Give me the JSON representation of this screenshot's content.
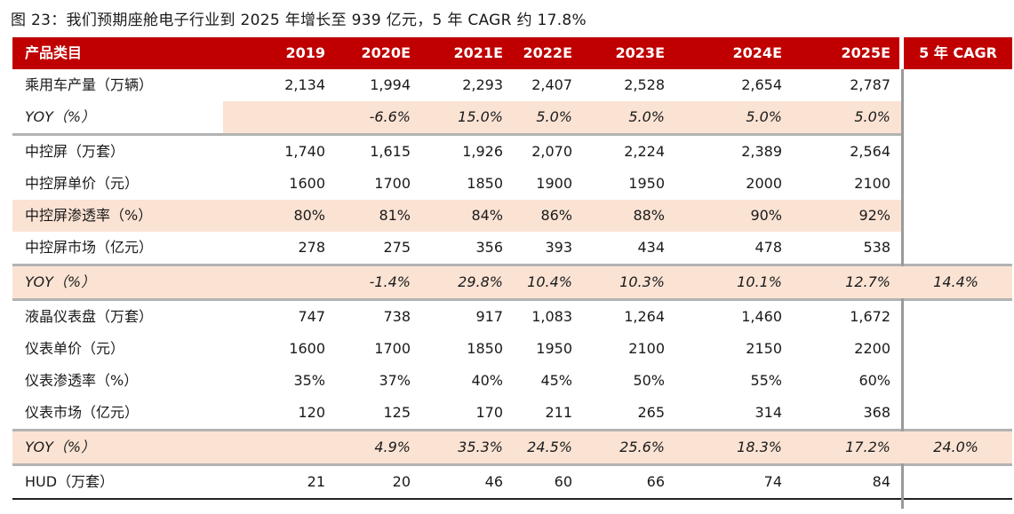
{
  "title": "图 23：我们预期座舱电子行业到 2025 年增长至 939 亿元，5 年 CAGR 约 17.8%",
  "header": {
    "label": "产品类目",
    "years": [
      "2019",
      "2020E",
      "2021E",
      "2022E",
      "2023E",
      "2024E",
      "2025E"
    ],
    "cagr": "5 年 CAGR"
  },
  "rows": [
    {
      "label": "乘用车产量（万辆）",
      "values": [
        "2,134",
        "1,994",
        "2,293",
        "2,407",
        "2,528",
        "2,654",
        "2,787"
      ],
      "cagr": ""
    },
    {
      "label": "YOY（%）",
      "values": [
        "",
        "-6.6%",
        "15.0%",
        "5.0%",
        "5.0%",
        "5.0%",
        "5.0%"
      ],
      "cagr": ""
    },
    {
      "label": "中控屏（万套）",
      "values": [
        "1,740",
        "1,615",
        "1,926",
        "2,070",
        "2,224",
        "2,389",
        "2,564"
      ],
      "cagr": ""
    },
    {
      "label": "中控屏单价（元）",
      "values": [
        "1600",
        "1700",
        "1850",
        "1900",
        "1950",
        "2000",
        "2100"
      ],
      "cagr": ""
    },
    {
      "label": "中控屏渗透率（%）",
      "values": [
        "80%",
        "81%",
        "84%",
        "86%",
        "88%",
        "90%",
        "92%"
      ],
      "cagr": ""
    },
    {
      "label": "中控屏市场（亿元）",
      "values": [
        "278",
        "275",
        "356",
        "393",
        "434",
        "478",
        "538"
      ],
      "cagr": ""
    },
    {
      "label": "YOY（%）",
      "values": [
        "",
        "-1.4%",
        "29.8%",
        "10.4%",
        "10.3%",
        "10.1%",
        "12.7%"
      ],
      "cagr": "14.4%"
    },
    {
      "label": "液晶仪表盘（万套）",
      "values": [
        "747",
        "738",
        "917",
        "1,083",
        "1,264",
        "1,460",
        "1,672"
      ],
      "cagr": ""
    },
    {
      "label": "仪表单价（元）",
      "values": [
        "1600",
        "1700",
        "1850",
        "1950",
        "2100",
        "2150",
        "2200"
      ],
      "cagr": ""
    },
    {
      "label": "仪表渗透率（%）",
      "values": [
        "35%",
        "37%",
        "40%",
        "45%",
        "50%",
        "55%",
        "60%"
      ],
      "cagr": ""
    },
    {
      "label": "仪表市场（亿元）",
      "values": [
        "120",
        "125",
        "170",
        "211",
        "265",
        "314",
        "368"
      ],
      "cagr": ""
    },
    {
      "label": "YOY（%）",
      "values": [
        "",
        "4.9%",
        "35.3%",
        "24.5%",
        "25.6%",
        "18.3%",
        "17.2%"
      ],
      "cagr": "24.0%"
    },
    {
      "label": "HUD（万套）",
      "values": [
        "21",
        "20",
        "46",
        "60",
        "66",
        "74",
        "84"
      ],
      "cagr": ""
    }
  ]
}
